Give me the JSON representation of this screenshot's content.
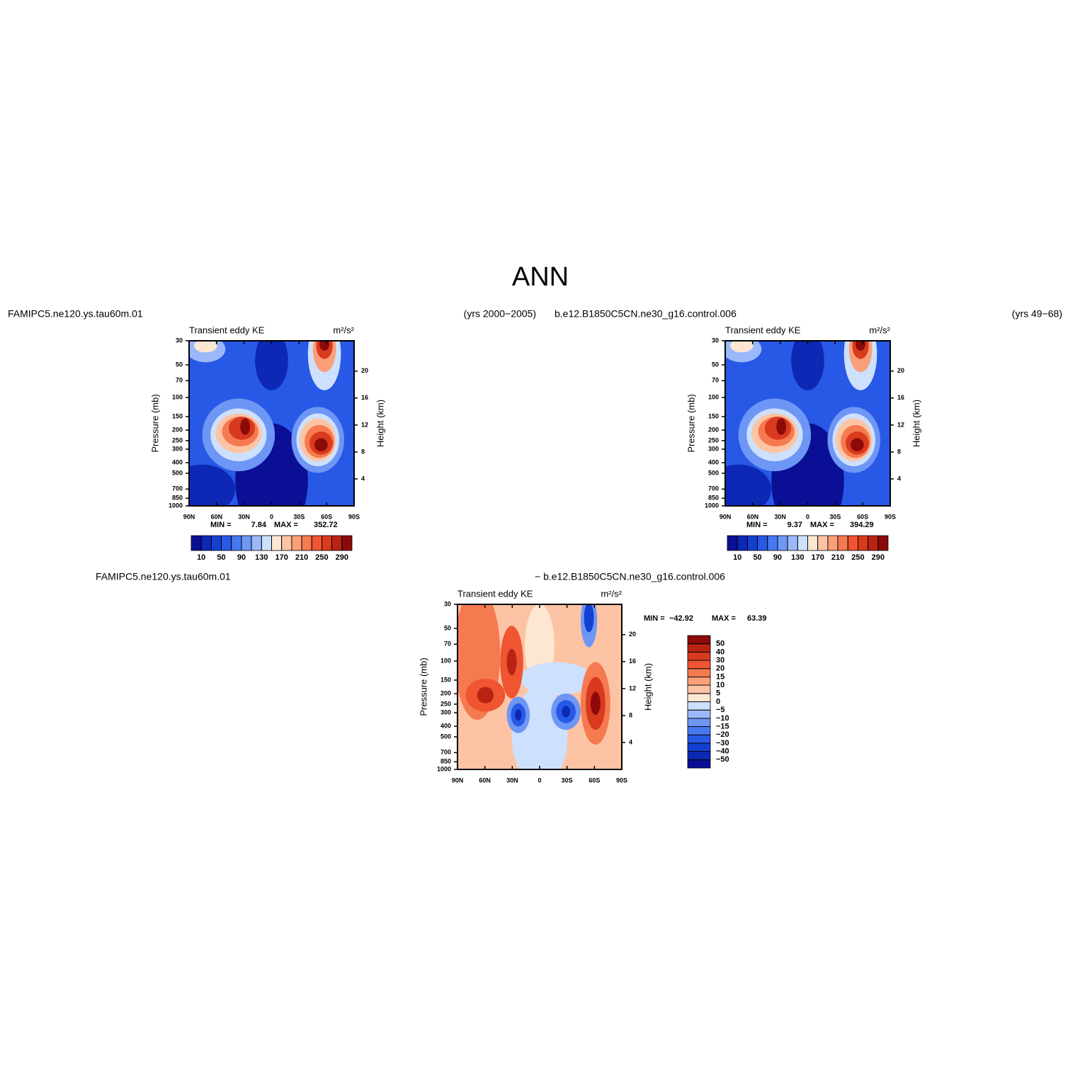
{
  "title": "ANN",
  "chart_data": [
    {
      "type": "contour",
      "case": "FAMIPC5.ne120.ys.tau60m.01",
      "years": "(yrs 2000−2005)",
      "variable": "Transient eddy KE",
      "units": "m²/s²",
      "min_label": "MIN =",
      "min": 7.84,
      "max_label": "MAX =",
      "max": 352.72,
      "xlim": [
        90,
        -90
      ],
      "xticks": [
        {
          "value": 90,
          "label": "90N"
        },
        {
          "value": 60,
          "label": "60N"
        },
        {
          "value": 30,
          "label": "30N"
        },
        0,
        {
          "value": -30,
          "label": "30S"
        },
        {
          "value": -60,
          "label": "60S"
        },
        {
          "value": -90,
          "label": "90S"
        }
      ],
      "ylabel": "Pressure (mb)",
      "y_scale": "log",
      "ylim": [
        1000,
        30
      ],
      "yticks": [
        30,
        50,
        70,
        100,
        150,
        200,
        250,
        300,
        400,
        500,
        700,
        850,
        1000
      ],
      "y2label": "Height (km)",
      "y2lim": [
        0,
        24.5
      ],
      "y2ticks": [
        4,
        8,
        12,
        16,
        20
      ],
      "levels": [
        10,
        30,
        50,
        70,
        90,
        110,
        130,
        150,
        170,
        190,
        210,
        230,
        250,
        270,
        290
      ],
      "colors": [
        "#0a0f96",
        "#0c28b4",
        "#1440d2",
        "#2858e6",
        "#4678f0",
        "#6e96f5",
        "#9bb9fa",
        "#cde0fd",
        "#fde6d2",
        "#fcc4a4",
        "#fa9f78",
        "#f67a50",
        "#ee5530",
        "#d93a1e",
        "#b92314",
        "#8c0a0a"
      ],
      "colorbar": "horizontal"
    },
    {
      "type": "contour",
      "case": "b.e12.B1850C5CN.ne30_g16.control.006",
      "years": "(yrs 49−68)",
      "variable": "Transient eddy KE",
      "units": "m²/s²",
      "min_label": "MIN =",
      "min": 9.37,
      "max_label": "MAX =",
      "max": 394.29,
      "xlim": [
        90,
        -90
      ],
      "xticks": [
        {
          "value": 90,
          "label": "90N"
        },
        {
          "value": 60,
          "label": "60N"
        },
        {
          "value": 30,
          "label": "30N"
        },
        0,
        {
          "value": -30,
          "label": "30S"
        },
        {
          "value": -60,
          "label": "60S"
        },
        {
          "value": -90,
          "label": "90S"
        }
      ],
      "ylabel": "Pressure (mb)",
      "y_scale": "log",
      "ylim": [
        1000,
        30
      ],
      "yticks": [
        30,
        50,
        70,
        100,
        150,
        200,
        250,
        300,
        400,
        500,
        700,
        850,
        1000
      ],
      "y2label": "Height (km)",
      "y2lim": [
        0,
        24.5
      ],
      "y2ticks": [
        4,
        8,
        12,
        16,
        20
      ],
      "levels": [
        10,
        30,
        50,
        70,
        90,
        110,
        130,
        150,
        170,
        190,
        210,
        230,
        250,
        270,
        290
      ],
      "colors": [
        "#0a0f96",
        "#0c28b4",
        "#1440d2",
        "#2858e6",
        "#4678f0",
        "#6e96f5",
        "#9bb9fa",
        "#cde0fd",
        "#fde6d2",
        "#fcc4a4",
        "#fa9f78",
        "#f67a50",
        "#ee5530",
        "#d93a1e",
        "#b92314",
        "#8c0a0a"
      ],
      "colorbar": "horizontal"
    },
    {
      "type": "contour",
      "case": "FAMIPC5.ne120.ys.tau60m.01",
      "case2": "− b.e12.B1850C5CN.ne30_g16.control.006",
      "variable": "Transient eddy KE",
      "units": "m²/s²",
      "min_label": "MIN =",
      "min": {
        "value": -42.92,
        "label": "−42.92"
      },
      "max_label": "MAX =",
      "max": 63.39,
      "xlim": [
        90,
        -90
      ],
      "xticks": [
        {
          "value": 90,
          "label": "90N"
        },
        {
          "value": 60,
          "label": "60N"
        },
        {
          "value": 30,
          "label": "30N"
        },
        0,
        {
          "value": -30,
          "label": "30S"
        },
        {
          "value": -60,
          "label": "60S"
        },
        {
          "value": -90,
          "label": "90S"
        }
      ],
      "ylabel": "Pressure (mb)",
      "y_scale": "log",
      "ylim": [
        1000,
        30
      ],
      "yticks": [
        30,
        50,
        70,
        100,
        150,
        200,
        250,
        300,
        400,
        500,
        700,
        850,
        1000
      ],
      "y2label": "Height (km)",
      "y2lim": [
        0,
        24.5
      ],
      "y2ticks": [
        4,
        8,
        12,
        16,
        20
      ],
      "levels": [
        {
          "value": -50,
          "label": "−50"
        },
        {
          "value": -40,
          "label": "−40"
        },
        {
          "value": -30,
          "label": "−30"
        },
        {
          "value": -20,
          "label": "−20"
        },
        {
          "value": -15,
          "label": "−15"
        },
        {
          "value": -10,
          "label": "−10"
        },
        {
          "value": -5,
          "label": "−5"
        },
        0,
        5,
        10,
        15,
        20,
        30,
        40,
        50
      ],
      "colors": [
        "#0a0f96",
        "#0c28b4",
        "#1440d2",
        "#2858e6",
        "#4678f0",
        "#6e96f5",
        "#9bb9fa",
        "#cde0fd",
        "#fde6d2",
        "#fcc4a4",
        "#fa9f78",
        "#f67a50",
        "#ee5530",
        "#d93a1e",
        "#b92314",
        "#8c0a0a"
      ],
      "colorbar": "vertical"
    }
  ]
}
